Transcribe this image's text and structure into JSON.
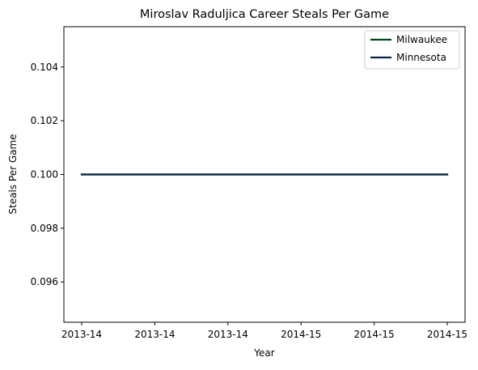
{
  "chart_data": {
    "type": "line",
    "title": "Miroslav Raduljica Career Steals Per Game",
    "xlabel": "Year",
    "ylabel": "Steals Per Game",
    "x_tick_labels": [
      "2013-14",
      "2013-14",
      "2013-14",
      "2014-15",
      "2014-15",
      "2014-15"
    ],
    "x": [
      "2013-14",
      "2014-15"
    ],
    "series": [
      {
        "name": "Milwaukee",
        "color": "#00471B",
        "values": [
          0.1,
          0.1
        ]
      },
      {
        "name": "Minnesota",
        "color": "#0C2340",
        "values": [
          0.1,
          0.1
        ]
      }
    ],
    "y_ticks": [
      0.096,
      0.098,
      0.1,
      0.102,
      0.104
    ],
    "y_tick_labels": [
      "0.096",
      "0.098",
      "0.100",
      "0.102",
      "0.104"
    ],
    "ylim": [
      0.0945,
      0.1055
    ],
    "grid": false,
    "legend_position": "top-right"
  }
}
